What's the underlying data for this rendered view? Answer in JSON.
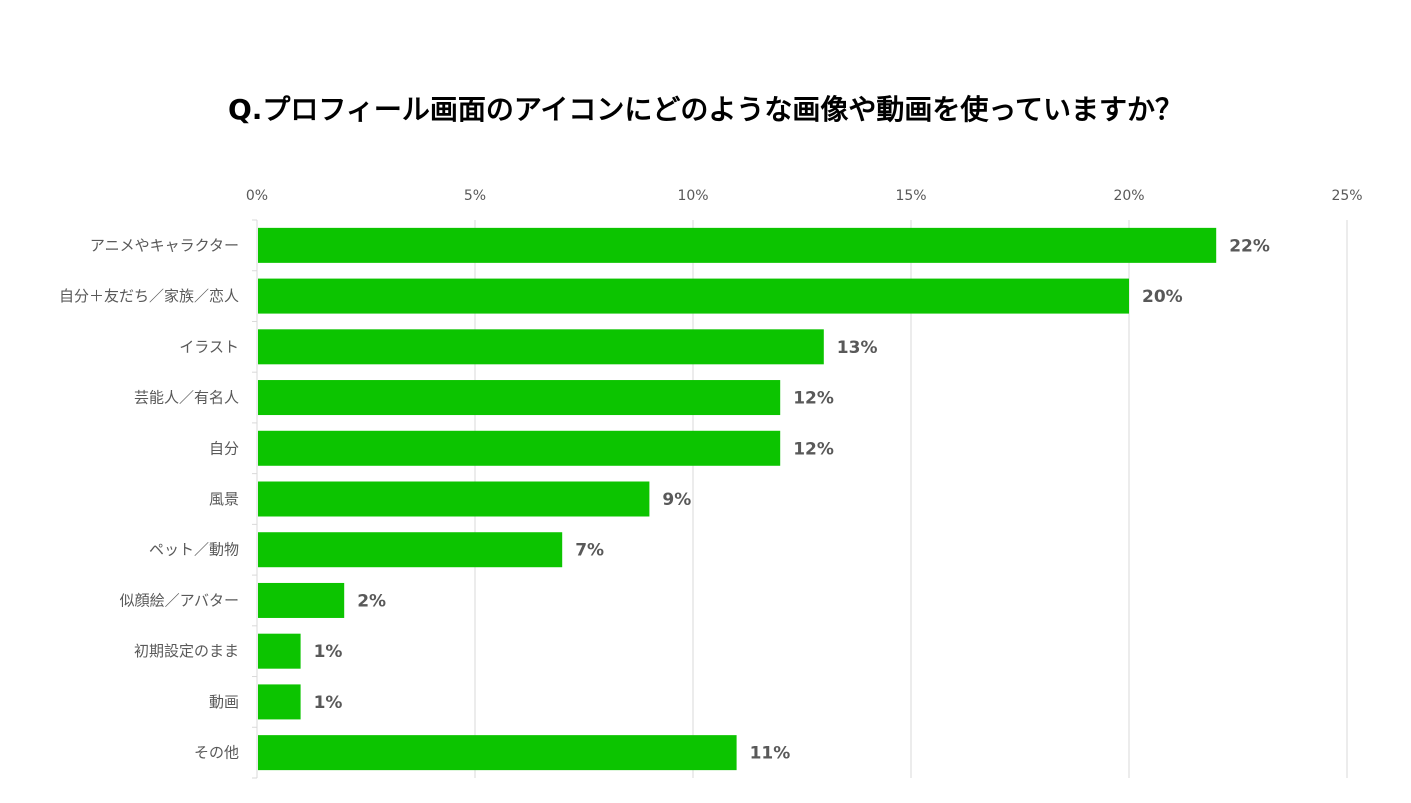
{
  "chart_data": {
    "type": "bar",
    "orientation": "horizontal",
    "title": "Q.プロフィール画面のアイコンにどのような画像や動画を使っていますか？",
    "xlabel": "",
    "ylabel": "",
    "xlim": [
      0,
      25
    ],
    "x_ticks": [
      "0%",
      "5%",
      "10%",
      "15%",
      "20%",
      "25%"
    ],
    "x_tick_values": [
      0,
      5,
      10,
      15,
      20,
      25
    ],
    "x_axis_position": "top",
    "grid": true,
    "legend": "none",
    "bar_color": "#0cc400",
    "categories": [
      "アニメやキャラクター",
      "自分＋友だち／家族／恋人",
      "イラスト",
      "芸能人／有名人",
      "自分",
      "風景",
      "ペット／動物",
      "似顔絵／アバター",
      "初期設定のまま",
      "動画",
      "その他"
    ],
    "values": [
      22,
      20,
      13,
      12,
      12,
      9,
      7,
      2,
      1,
      1,
      11
    ],
    "value_labels": [
      "22%",
      "20%",
      "13%",
      "12%",
      "12%",
      "9%",
      "7%",
      "2%",
      "1%",
      "1%",
      "11%"
    ]
  }
}
